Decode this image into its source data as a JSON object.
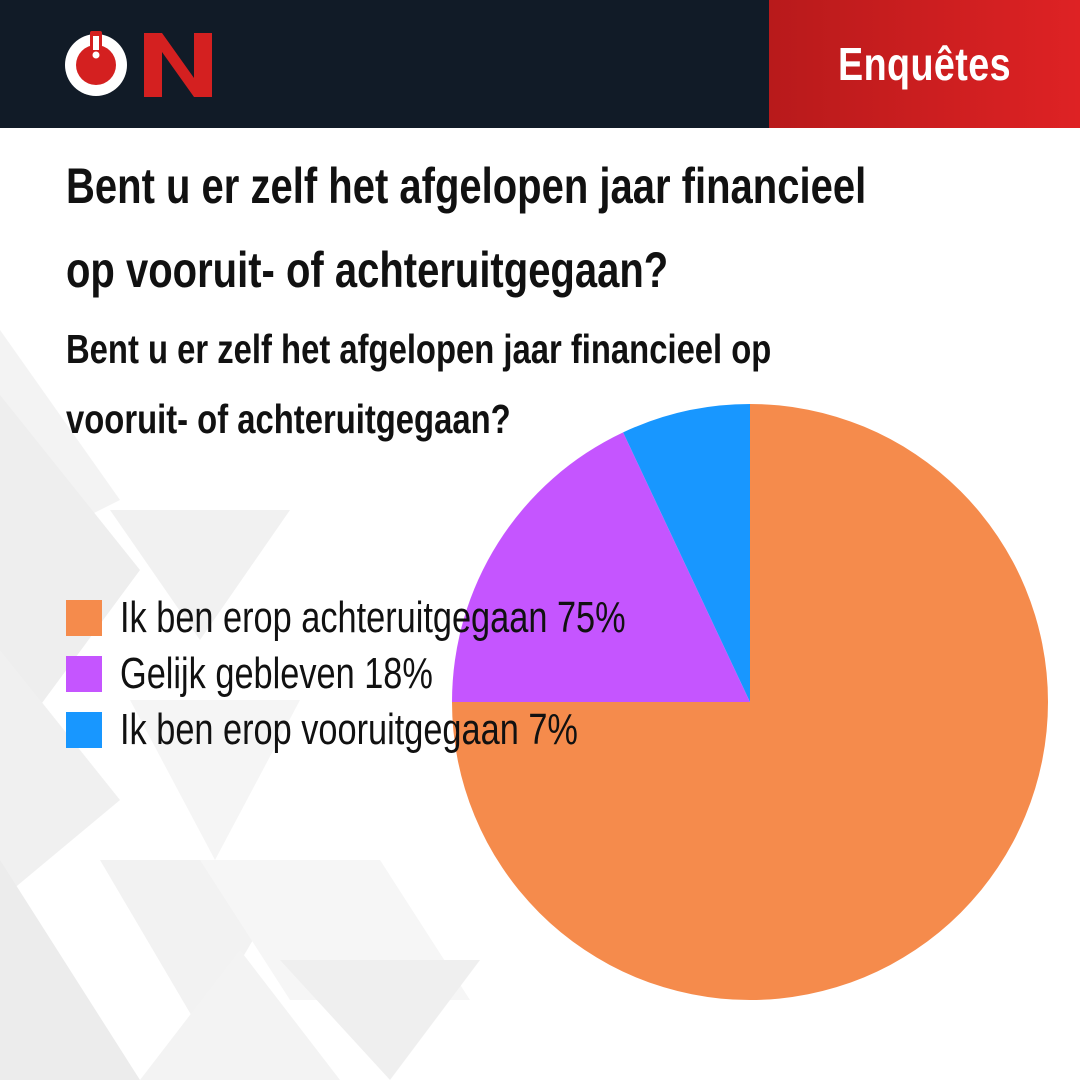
{
  "header": {
    "logo_text": "ON",
    "section_label": "Enquêtes"
  },
  "title": {
    "line1": "Bent u er zelf het afgelopen jaar financieel",
    "line2": "op vooruit- of achteruitgegaan?"
  },
  "subtitle": {
    "line1": "Bent u er zelf het afgelopen jaar financieel op",
    "line2": "vooruit- of achteruitgegaan?"
  },
  "colors": {
    "header_bg": "#111b27",
    "accent_red": "#d42020",
    "achteruit": "#f58b4c",
    "gelijk": "#c555ff",
    "vooruit": "#1897ff"
  },
  "chart_data": {
    "type": "pie",
    "legend_position": "left",
    "slices": [
      {
        "label": "Ik ben erop achteruitgegaan",
        "value": 75,
        "legend_text": "Ik ben erop achteruitgegaan 75%",
        "color": "#f58b4c"
      },
      {
        "label": "Gelijk gebleven",
        "value": 18,
        "legend_text": "Gelijk gebleven 18%",
        "color": "#c555ff"
      },
      {
        "label": "Ik ben erop vooruitgegaan",
        "value": 7,
        "legend_text": "Ik ben erop vooruitgegaan 7%",
        "color": "#1897ff"
      }
    ]
  }
}
